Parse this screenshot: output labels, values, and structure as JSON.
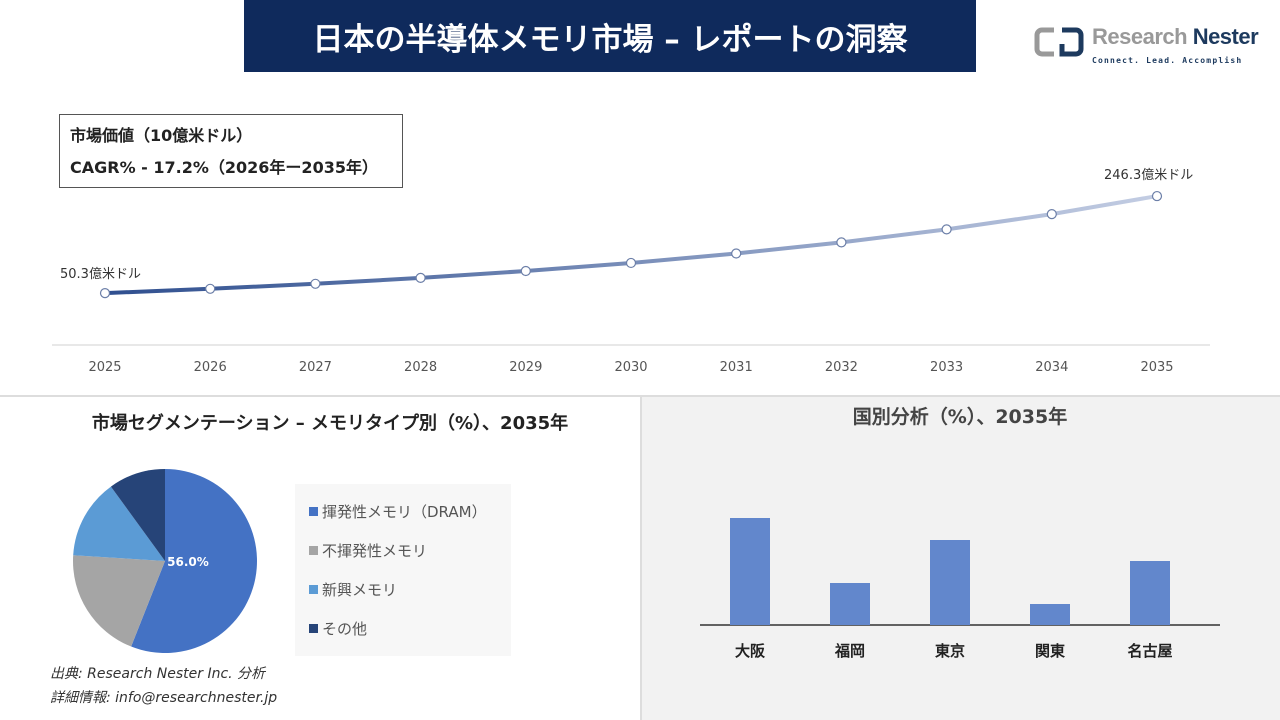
{
  "title": "日本の半導体メモリ市場 – レポートの洞察",
  "logo": {
    "name_light": "Research ",
    "name_dark": "Nester",
    "tagline": "Connect. Lead. Accomplish"
  },
  "infobox": {
    "line1": "市場価値（10億米ドル）",
    "line2": "CAGR% - 17.2%（2026年ー2035年）"
  },
  "footer": {
    "source": "出典: Research Nester Inc. 分析",
    "contact": "詳細情報: info@researchnester.jp"
  },
  "chart_data": [
    {
      "type": "line",
      "x": [
        "2025",
        "2026",
        "2027",
        "2028",
        "2029",
        "2030",
        "2031",
        "2032",
        "2033",
        "2034",
        "2035"
      ],
      "values": [
        50.3,
        59.0,
        69.1,
        81.0,
        94.9,
        111.2,
        130.3,
        152.8,
        179.0,
        209.8,
        246.3
      ],
      "data_labels": {
        "first": "50.3億米ドル",
        "last": "246.3億米ドル"
      },
      "colors": [
        "#2f4f8f",
        "#c3cde3"
      ]
    },
    {
      "type": "pie",
      "title": "市場セグメンテーション – メモリタイプ別（%）、2035年",
      "slices": [
        {
          "label": "揮発性メモリ（DRAM）",
          "value": 56.0,
          "color": "#4472c4"
        },
        {
          "label": "不揮発性メモリ",
          "value": 20.0,
          "color": "#a5a5a5"
        },
        {
          "label": "新興メモリ",
          "value": 14.0,
          "color": "#5b9bd5"
        },
        {
          "label": "その他",
          "value": 10.0,
          "color": "#264478"
        }
      ],
      "data_label": "56.0%"
    },
    {
      "type": "bar",
      "title": "国別分析（%）、2035年",
      "categories": [
        "大阪",
        "福岡",
        "東京",
        "関東",
        "名古屋"
      ],
      "values": [
        107,
        42,
        85,
        21,
        64
      ],
      "color": "#6287cc"
    }
  ]
}
